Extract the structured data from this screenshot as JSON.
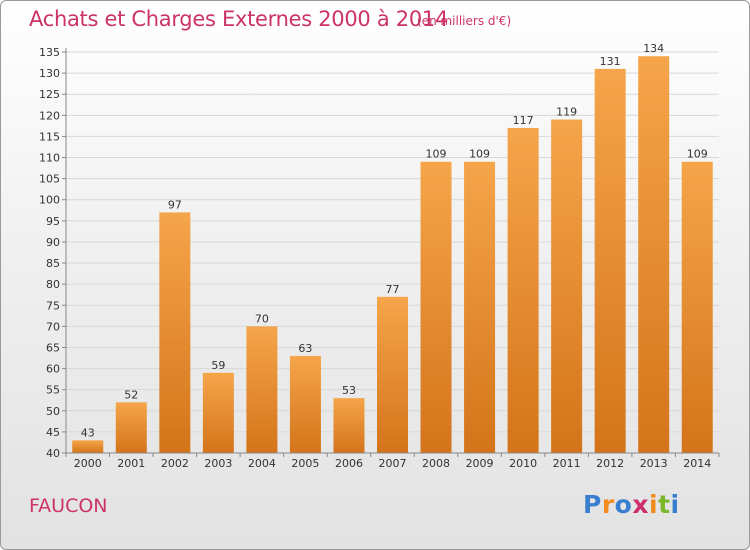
{
  "header": {
    "title": "Achats et Charges Externes 2000 à 2014",
    "unit": "(en milliers d'€)"
  },
  "footer": {
    "place": "FAUCON",
    "logo": {
      "text": "Proxiti",
      "letter_colors": [
        "#3a7fcf",
        "#f28c1e",
        "#3a7fcf",
        "#cc2f6b",
        "#f28c1e",
        "#7ab829",
        "#3a7fcf"
      ]
    }
  },
  "colors": {
    "title": "#cc3366",
    "bar_top": "#f5a54a",
    "bar_bottom": "#d4741a",
    "axis": "#888888",
    "grid": "#d8d8d8"
  },
  "chart_data": {
    "type": "bar",
    "categories": [
      "2000",
      "2001",
      "2002",
      "2003",
      "2004",
      "2005",
      "2006",
      "2007",
      "2008",
      "2009",
      "2010",
      "2011",
      "2012",
      "2013",
      "2014"
    ],
    "values": [
      43,
      52,
      97,
      59,
      70,
      63,
      53,
      77,
      109,
      109,
      117,
      119,
      131,
      134,
      109
    ],
    "value_labels": [
      "43",
      "52",
      "97",
      "59",
      "70",
      "63",
      "53",
      "77",
      "109",
      "109",
      "117",
      "119",
      "131",
      "134",
      "109"
    ],
    "yticks": [
      40,
      45,
      50,
      55,
      60,
      65,
      70,
      75,
      80,
      85,
      90,
      95,
      100,
      105,
      110,
      115,
      120,
      125,
      130,
      135
    ],
    "ylim": [
      40,
      135
    ],
    "grid": true,
    "legend": "none"
  }
}
